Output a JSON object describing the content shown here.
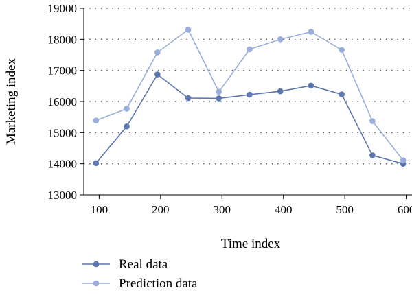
{
  "chart_data": {
    "type": "line",
    "xlabel": "Time index",
    "ylabel": "Marketing index",
    "xlim": [
      75,
      615
    ],
    "ylim": [
      13000,
      19000
    ],
    "x_ticks": [
      "100",
      "200",
      "300",
      "400",
      "500",
      "600"
    ],
    "y_ticks": [
      "13000",
      "14000",
      "15000",
      "16000",
      "17000",
      "18000",
      "19000"
    ],
    "grid": "horizontal dotted",
    "legend_position": "bottom-left",
    "series": [
      {
        "name": "Real data",
        "color": "#5b77ad",
        "x": [
          95,
          145,
          195,
          245,
          295,
          345,
          395,
          445,
          495,
          545,
          595
        ],
        "values": [
          14020,
          15200,
          16870,
          16110,
          16100,
          16220,
          16330,
          16510,
          16230,
          14270,
          14000
        ]
      },
      {
        "name": "Prediction data",
        "color": "#9aaedb",
        "x": [
          95,
          145,
          195,
          245,
          295,
          345,
          395,
          445,
          495,
          545,
          595
        ],
        "values": [
          15390,
          15770,
          17580,
          18310,
          16310,
          17680,
          18000,
          18240,
          17660,
          15370,
          14110
        ]
      }
    ]
  }
}
